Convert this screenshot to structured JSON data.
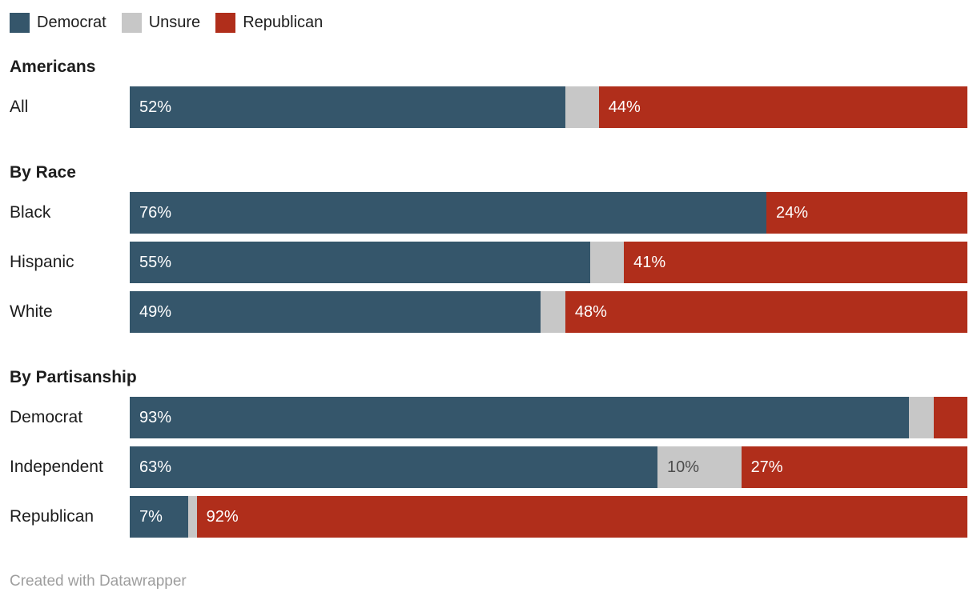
{
  "legend": {
    "items": [
      {
        "id": "democrat",
        "label": "Democrat",
        "color": "#35566b"
      },
      {
        "id": "unsure",
        "label": "Unsure",
        "color": "#c7c7c7"
      },
      {
        "id": "republican",
        "label": "Republican",
        "color": "#b02e1b"
      }
    ]
  },
  "colors": {
    "democrat": "#35566b",
    "unsure": "#c7c7c7",
    "republican": "#b02e1b",
    "text": "#1d1d1d",
    "unsure_label_text": "#4d4d4d",
    "footer_text": "#9e9e9e"
  },
  "chart_data": {
    "type": "bar",
    "subtype": "stacked-horizontal",
    "value_unit": "%",
    "axis_range": [
      0,
      100
    ],
    "grid": false,
    "legend_position": "top",
    "series_names": [
      "Democrat",
      "Unsure",
      "Republican"
    ],
    "sections": [
      {
        "title": "Americans",
        "rows": [
          {
            "label": "All",
            "values": [
              52,
              4,
              44
            ],
            "segment_labels": [
              "52%",
              "",
              "44%"
            ]
          }
        ]
      },
      {
        "title": "By Race",
        "rows": [
          {
            "label": "Black",
            "values": [
              76,
              0,
              24
            ],
            "segment_labels": [
              "76%",
              "",
              "24%"
            ]
          },
          {
            "label": "Hispanic",
            "values": [
              55,
              4,
              41
            ],
            "segment_labels": [
              "55%",
              "",
              "41%"
            ]
          },
          {
            "label": "White",
            "values": [
              49,
              3,
              48
            ],
            "segment_labels": [
              "49%",
              "",
              "48%"
            ]
          }
        ]
      },
      {
        "title": "By Partisanship",
        "rows": [
          {
            "label": "Democrat",
            "values": [
              93,
              3,
              4
            ],
            "segment_labels": [
              "93%",
              "",
              ""
            ]
          },
          {
            "label": "Independent",
            "values": [
              63,
              10,
              27
            ],
            "segment_labels": [
              "63%",
              "10%",
              "27%"
            ]
          },
          {
            "label": "Republican",
            "values": [
              7,
              1,
              92
            ],
            "segment_labels": [
              "7%",
              "",
              "92%"
            ]
          }
        ]
      }
    ]
  },
  "footer": {
    "credit": "Created with Datawrapper"
  }
}
